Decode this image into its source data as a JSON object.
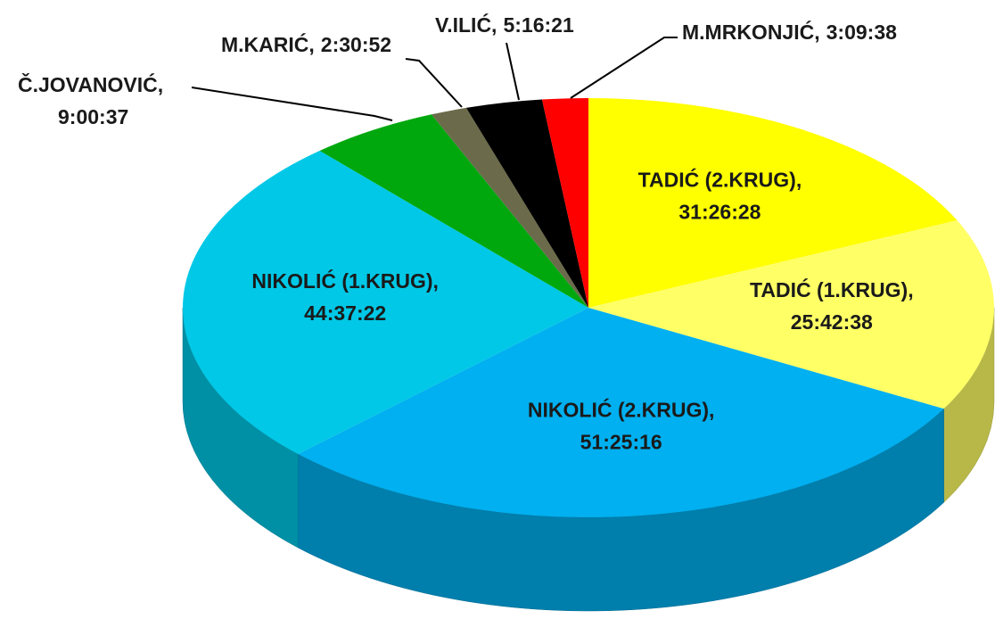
{
  "chart_data": {
    "type": "pie",
    "categories": [
      "TADIĆ (2.KRUG),",
      "TADIĆ (1.KRUG),",
      "NIKOLIĆ (2.KRUG),",
      "NIKOLIĆ (1.KRUG),",
      "Č.JOVANOVIĆ,",
      "M.KARIĆ,",
      "V.ILIĆ,",
      "M.MRKONJIĆ,"
    ],
    "values": [
      113188,
      92558,
      185116,
      160642,
      32437,
      9052,
      18981,
      11378
    ],
    "value_labels": [
      "31:26:28",
      "25:42:38",
      "51:25:16",
      "44:37:22",
      "9:00:37",
      "2:30:52",
      "5:16:21",
      "3:09:38"
    ],
    "colors": [
      "#ffff00",
      "#ffff66",
      "#00b0f0",
      "#00c8e6",
      "#00a80e",
      "#6b6b4b",
      "#000000",
      "#ff0000"
    ]
  }
}
